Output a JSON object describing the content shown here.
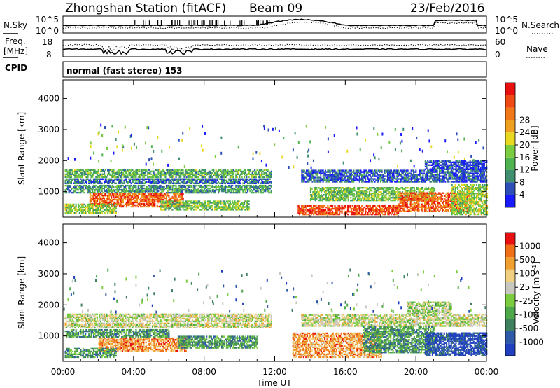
{
  "header": {
    "title": "Zhongshan Station (fitACF)",
    "beam": "Beam 09",
    "date": "23/Feb/2016"
  },
  "nsky_panel": {
    "left_label": "N.Sky",
    "left_ticks": [
      "10^5",
      "10^0"
    ],
    "right_label": "N.Search",
    "right_ticks": [
      "10^5",
      "10^0"
    ]
  },
  "freq_panel": {
    "left_label_1": "Freq.",
    "left_label_2": "[MHz]",
    "left_ticks": [
      "18",
      "8"
    ],
    "right_label": "Nave",
    "right_ticks": [
      "60",
      "0"
    ]
  },
  "cpid": {
    "label": "CPID",
    "text": "normal (fast stereo) 153"
  },
  "chart_data": [
    {
      "type": "heatmap",
      "name": "power",
      "ylabel": "Slant Range [km]",
      "ylim": [
        180,
        4600
      ],
      "y_ticks": [
        "1000",
        "2000",
        "3000",
        "4000"
      ],
      "y_tick_values": [
        1000,
        2000,
        3000,
        4000
      ],
      "x_ticks": [
        "00:00",
        "04:00",
        "08:00",
        "12:00",
        "16:00",
        "20:00",
        "00:00"
      ],
      "x_tick_hours": [
        0,
        4,
        8,
        12,
        16,
        20,
        24
      ],
      "colorbar": {
        "label": "Power [dB]",
        "ticks": [
          "4",
          "8",
          "12",
          "16",
          "20",
          "24",
          "28"
        ],
        "colors": [
          "#1a1aff",
          "#2e4fb8",
          "#3f8f70",
          "#4fb450",
          "#7ccc40",
          "#e8d820",
          "#f0a020",
          "#f07818",
          "#f04a14",
          "#e81010"
        ]
      },
      "echo_bands": [
        {
          "hours": [
            0.1,
            11.8
          ],
          "range": [
            1450,
            1700
          ],
          "level": 0.35
        },
        {
          "hours": [
            0.1,
            11.8
          ],
          "range": [
            1250,
            1400
          ],
          "level": 0.2
        },
        {
          "hours": [
            0.1,
            11.8
          ],
          "range": [
            950,
            1200
          ],
          "level": 0.3
        },
        {
          "hours": [
            1.5,
            6.8
          ],
          "range": [
            500,
            950
          ],
          "level": 0.8
        },
        {
          "hours": [
            0.1,
            3.0
          ],
          "range": [
            300,
            600
          ],
          "level": 0.45
        },
        {
          "hours": [
            5.5,
            10.5
          ],
          "range": [
            400,
            700
          ],
          "level": 0.4
        },
        {
          "hours": [
            13.5,
            24.0
          ],
          "range": [
            1300,
            1700
          ],
          "level": 0.15
        },
        {
          "hours": [
            14.0,
            21.0
          ],
          "range": [
            700,
            1150
          ],
          "level": 0.4
        },
        {
          "hours": [
            13.3,
            19.0
          ],
          "range": [
            250,
            550
          ],
          "level": 0.85
        },
        {
          "hours": [
            19.0,
            23.0
          ],
          "range": [
            350,
            950
          ],
          "level": 0.8
        },
        {
          "hours": [
            20.5,
            24.0
          ],
          "range": [
            1700,
            2000
          ],
          "level": 0.12
        },
        {
          "hours": [
            22.0,
            24.0
          ],
          "range": [
            250,
            1200
          ],
          "level": 0.45
        }
      ]
    },
    {
      "type": "heatmap",
      "name": "velocity",
      "ylabel": "Slant Range [km]",
      "xlabel": "Time UT",
      "ylim": [
        180,
        4600
      ],
      "y_ticks": [
        "1000",
        "2000",
        "3000",
        "4000"
      ],
      "y_tick_values": [
        1000,
        2000,
        3000,
        4000
      ],
      "x_ticks": [
        "00:00",
        "04:00",
        "08:00",
        "12:00",
        "16:00",
        "20:00",
        "00:00"
      ],
      "x_tick_hours": [
        0,
        4,
        8,
        12,
        16,
        20,
        24
      ],
      "colorbar": {
        "label": "Velocity [m s^-1]",
        "ticks": [
          "1000",
          "500",
          "100",
          "25",
          "-25",
          "-100",
          "-500",
          "-1000"
        ],
        "colors": [
          "#2040c0",
          "#2e5aa8",
          "#3f8060",
          "#4ea84a",
          "#7ccc40",
          "#c8c8c0",
          "#f0d080",
          "#f0a030",
          "#f07018",
          "#e81010"
        ]
      },
      "echo_bands": [
        {
          "hours": [
            0.1,
            11.8
          ],
          "range": [
            1450,
            1700
          ],
          "level": 0.55
        },
        {
          "hours": [
            0.1,
            11.8
          ],
          "range": [
            1250,
            1400
          ],
          "level": 0.55
        },
        {
          "hours": [
            0.1,
            6.0
          ],
          "range": [
            950,
            1200
          ],
          "level": 0.3
        },
        {
          "hours": [
            2.0,
            7.0
          ],
          "range": [
            500,
            950
          ],
          "level": 0.78
        },
        {
          "hours": [
            0.1,
            3.0
          ],
          "range": [
            300,
            600
          ],
          "level": 0.3
        },
        {
          "hours": [
            6.5,
            11.0
          ],
          "range": [
            600,
            1000
          ],
          "level": 0.3
        },
        {
          "hours": [
            13.5,
            24.0
          ],
          "range": [
            1300,
            1700
          ],
          "level": 0.55
        },
        {
          "hours": [
            13.0,
            18.0
          ],
          "range": [
            300,
            1100
          ],
          "level": 0.75
        },
        {
          "hours": [
            17.0,
            21.0
          ],
          "range": [
            450,
            1300
          ],
          "level": 0.3
        },
        {
          "hours": [
            20.5,
            24.0
          ],
          "range": [
            350,
            1100
          ],
          "level": 0.08
        },
        {
          "hours": [
            19.5,
            22.0
          ],
          "range": [
            1700,
            2100
          ],
          "level": 0.5
        }
      ]
    }
  ]
}
